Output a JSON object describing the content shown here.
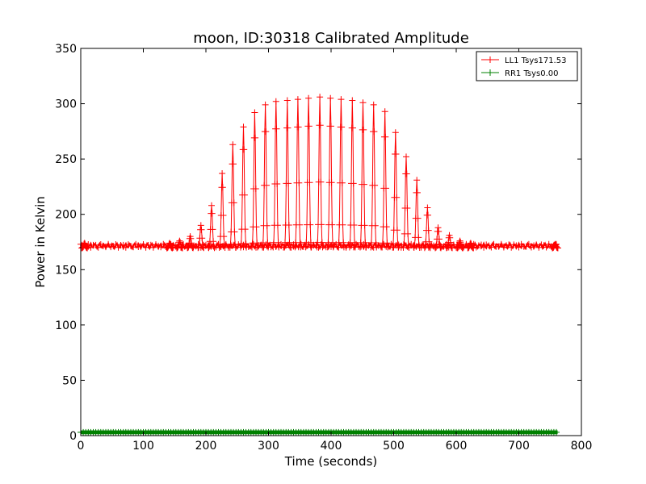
{
  "chart_data": {
    "type": "line",
    "title": "moon, ID:30318 Calibrated Amplitude",
    "xlabel": "Time (seconds)",
    "ylabel": "Power in Kelvin",
    "xlim": [
      0,
      800
    ],
    "ylim": [
      0,
      350
    ],
    "xticks": [
      0,
      100,
      200,
      300,
      400,
      500,
      600,
      700,
      800
    ],
    "yticks": [
      0,
      50,
      100,
      150,
      200,
      250,
      300,
      350
    ],
    "grid": false,
    "legend_position": "top-right",
    "series": [
      {
        "name": "LL1 Tsys171.53",
        "color": "#ff0000",
        "marker": "+",
        "baseline": 171.53,
        "x_range": [
          0,
          762
        ],
        "scan_peaks": [
          {
            "x": 6,
            "peak": 176
          },
          {
            "x": 142,
            "peak": 176
          },
          {
            "x": 158,
            "peak": 178
          },
          {
            "x": 175,
            "peak": 182
          },
          {
            "x": 192,
            "peak": 192
          },
          {
            "x": 209,
            "peak": 210
          },
          {
            "x": 226,
            "peak": 239
          },
          {
            "x": 243,
            "peak": 265
          },
          {
            "x": 260,
            "peak": 281
          },
          {
            "x": 278,
            "peak": 294
          },
          {
            "x": 295,
            "peak": 301
          },
          {
            "x": 312,
            "peak": 304
          },
          {
            "x": 330,
            "peak": 305
          },
          {
            "x": 347,
            "peak": 306
          },
          {
            "x": 364,
            "peak": 307
          },
          {
            "x": 382,
            "peak": 308
          },
          {
            "x": 399,
            "peak": 307
          },
          {
            "x": 416,
            "peak": 306
          },
          {
            "x": 434,
            "peak": 305
          },
          {
            "x": 451,
            "peak": 303
          },
          {
            "x": 468,
            "peak": 301
          },
          {
            "x": 486,
            "peak": 295
          },
          {
            "x": 503,
            "peak": 276
          },
          {
            "x": 520,
            "peak": 254
          },
          {
            "x": 537,
            "peak": 233
          },
          {
            "x": 554,
            "peak": 208
          },
          {
            "x": 571,
            "peak": 190
          },
          {
            "x": 589,
            "peak": 183
          },
          {
            "x": 606,
            "peak": 178
          },
          {
            "x": 623,
            "peak": 176
          },
          {
            "x": 758,
            "peak": 175
          }
        ]
      },
      {
        "name": "RR1 Tsys0.00",
        "color": "#008000",
        "marker": "+",
        "baseline": 3,
        "x_range": [
          0,
          762
        ]
      }
    ]
  }
}
